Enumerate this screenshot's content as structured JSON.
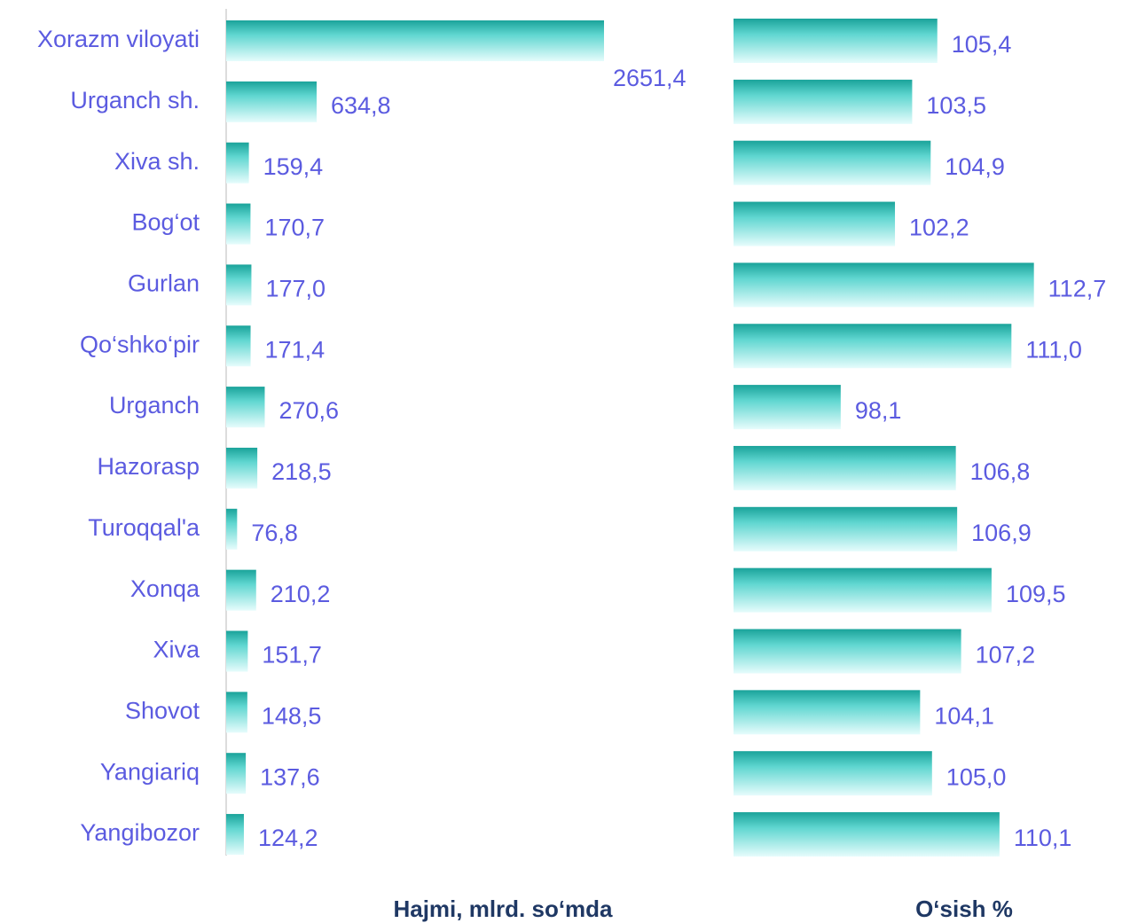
{
  "chart_data": [
    {
      "type": "bar",
      "orientation": "horizontal",
      "title": "Hajmi, mlrd. so‘mda",
      "categories": [
        "Xorazm viloyati",
        "Urganch sh.",
        "Xiva sh.",
        "Bog‘ot",
        "Gurlan",
        "Qo‘shko‘pir",
        "Urganch",
        "Hazorasp",
        "Turoqqal'a",
        "Xonqa",
        "Xiva",
        "Shovot",
        "Yangiariq",
        "Yangibozor"
      ],
      "values": [
        2651.4,
        634.8,
        159.4,
        170.7,
        177.0,
        171.4,
        270.6,
        218.5,
        76.8,
        210.2,
        151.7,
        148.5,
        137.6,
        124.2
      ],
      "value_labels": [
        "2651,4",
        "634,8",
        "159,4",
        "170,7",
        "177,0",
        "171,4",
        "270,6",
        "218,5",
        "76,8",
        "210,2",
        "151,7",
        "148,5",
        "137,6",
        "124,2"
      ],
      "xlim": [
        0,
        3000
      ],
      "color": "#1aa39a"
    },
    {
      "type": "bar",
      "orientation": "horizontal",
      "title": "O‘sish %",
      "values": [
        105.4,
        103.5,
        104.9,
        102.2,
        112.7,
        111.0,
        98.1,
        106.8,
        106.9,
        109.5,
        107.2,
        104.1,
        105.0,
        110.1
      ],
      "value_labels": [
        "105,4",
        "103,5",
        "104,9",
        "102,2",
        "112,7",
        "111,0",
        "98,1",
        "106,8",
        "106,9",
        "109,5",
        "107,2",
        "104,1",
        "105,0",
        "110,1"
      ],
      "xlim": [
        90,
        115
      ],
      "color": "#1aa39a"
    }
  ]
}
